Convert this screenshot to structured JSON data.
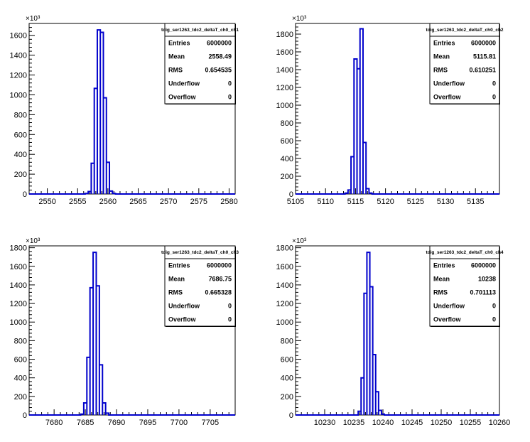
{
  "chart_data": [
    {
      "type": "histogram",
      "title": "tdig_ser1263_tdc2_deltaT_ch0_ch1",
      "xlim": [
        2547,
        2581
      ],
      "ylim": [
        0,
        1720
      ],
      "y_multiplier_label": "×10³",
      "xticks": [
        2550,
        2555,
        2560,
        2565,
        2570,
        2575,
        2580
      ],
      "yticks": [
        0,
        200,
        400,
        600,
        800,
        1000,
        1200,
        1400,
        1600
      ],
      "bin_width": 0.5,
      "bins": [
        {
          "x": 2556.5,
          "y": 5
        },
        {
          "x": 2557.0,
          "y": 25
        },
        {
          "x": 2557.5,
          "y": 310
        },
        {
          "x": 2558.0,
          "y": 1065
        },
        {
          "x": 2558.5,
          "y": 1655
        },
        {
          "x": 2559.0,
          "y": 1630
        },
        {
          "x": 2559.5,
          "y": 970
        },
        {
          "x": 2560.0,
          "y": 320
        },
        {
          "x": 2560.5,
          "y": 30
        },
        {
          "x": 2561.0,
          "y": 5
        }
      ],
      "stats": [
        {
          "label": "Entries",
          "value": "6000000"
        },
        {
          "label": "Mean",
          "value": "2558.49"
        },
        {
          "label": "RMS",
          "value": "0.654535"
        },
        {
          "label": "Underflow",
          "value": "0"
        },
        {
          "label": "Overflow",
          "value": "0"
        }
      ]
    },
    {
      "type": "histogram",
      "title": "tdig_ser1263_tdc2_deltaT_ch0_ch2",
      "xlim": [
        5105,
        5139
      ],
      "ylim": [
        0,
        1920
      ],
      "y_multiplier_label": "×10³",
      "xticks": [
        5105,
        5110,
        5115,
        5120,
        5125,
        5130,
        5135
      ],
      "yticks": [
        0,
        200,
        400,
        600,
        800,
        1000,
        1200,
        1400,
        1600,
        1800
      ],
      "bin_width": 0.5,
      "bins": [
        {
          "x": 5113.5,
          "y": 10
        },
        {
          "x": 5114.0,
          "y": 45
        },
        {
          "x": 5114.5,
          "y": 420
        },
        {
          "x": 5115.0,
          "y": 1520
        },
        {
          "x": 5115.5,
          "y": 1410
        },
        {
          "x": 5116.0,
          "y": 1860
        },
        {
          "x": 5116.5,
          "y": 580
        },
        {
          "x": 5117.0,
          "y": 60
        },
        {
          "x": 5117.5,
          "y": 10
        }
      ],
      "stats": [
        {
          "label": "Entries",
          "value": "6000000"
        },
        {
          "label": "Mean",
          "value": "5115.81"
        },
        {
          "label": "RMS",
          "value": "0.610251"
        },
        {
          "label": "Underflow",
          "value": "0"
        },
        {
          "label": "Overflow",
          "value": "0"
        }
      ]
    },
    {
      "type": "histogram",
      "title": "tdig_ser1263_tdc2_deltaT_ch0_ch3",
      "xlim": [
        7676,
        7709
      ],
      "ylim": [
        0,
        1820
      ],
      "y_multiplier_label": "×10³",
      "xticks": [
        7680,
        7685,
        7690,
        7695,
        7700,
        7705
      ],
      "yticks": [
        0,
        200,
        400,
        600,
        800,
        1000,
        1200,
        1400,
        1600,
        1800
      ],
      "bin_width": 0.5,
      "bins": [
        {
          "x": 7684.5,
          "y": 10
        },
        {
          "x": 7685.0,
          "y": 130
        },
        {
          "x": 7685.5,
          "y": 620
        },
        {
          "x": 7686.0,
          "y": 1370
        },
        {
          "x": 7686.5,
          "y": 1750
        },
        {
          "x": 7687.0,
          "y": 1390
        },
        {
          "x": 7687.5,
          "y": 540
        },
        {
          "x": 7688.0,
          "y": 130
        },
        {
          "x": 7688.5,
          "y": 20
        }
      ],
      "stats": [
        {
          "label": "Entries",
          "value": "6000000"
        },
        {
          "label": "Mean",
          "value": "7686.75"
        },
        {
          "label": "RMS",
          "value": "0.665328"
        },
        {
          "label": "Underflow",
          "value": "0"
        },
        {
          "label": "Overflow",
          "value": "0"
        }
      ]
    },
    {
      "type": "histogram",
      "title": "tdig_ser1263_tdc2_deltaT_ch0_ch4",
      "xlim": [
        10225,
        10260
      ],
      "ylim": [
        0,
        1820
      ],
      "y_multiplier_label": "×10³",
      "xticks": [
        10230,
        10235,
        10240,
        10245,
        10250,
        10255,
        10260
      ],
      "yticks": [
        0,
        200,
        400,
        600,
        800,
        1000,
        1200,
        1400,
        1600,
        1800
      ],
      "bin_width": 0.5,
      "bins": [
        {
          "x": 10236.0,
          "y": 40
        },
        {
          "x": 10236.5,
          "y": 400
        },
        {
          "x": 10237.0,
          "y": 1310
        },
        {
          "x": 10237.5,
          "y": 1750
        },
        {
          "x": 10238.0,
          "y": 1380
        },
        {
          "x": 10238.5,
          "y": 650
        },
        {
          "x": 10239.0,
          "y": 250
        },
        {
          "x": 10239.5,
          "y": 50
        },
        {
          "x": 10240.0,
          "y": 10
        }
      ],
      "stats": [
        {
          "label": "Entries",
          "value": "6000000"
        },
        {
          "label": "Mean",
          "value": "10238"
        },
        {
          "label": "RMS",
          "value": "0.701113"
        },
        {
          "label": "Underflow",
          "value": "0"
        },
        {
          "label": "Overflow",
          "value": "0"
        }
      ]
    }
  ],
  "colors": {
    "histogram_line": "#0000cc",
    "frame": "#000000",
    "background": "#ffffff"
  }
}
